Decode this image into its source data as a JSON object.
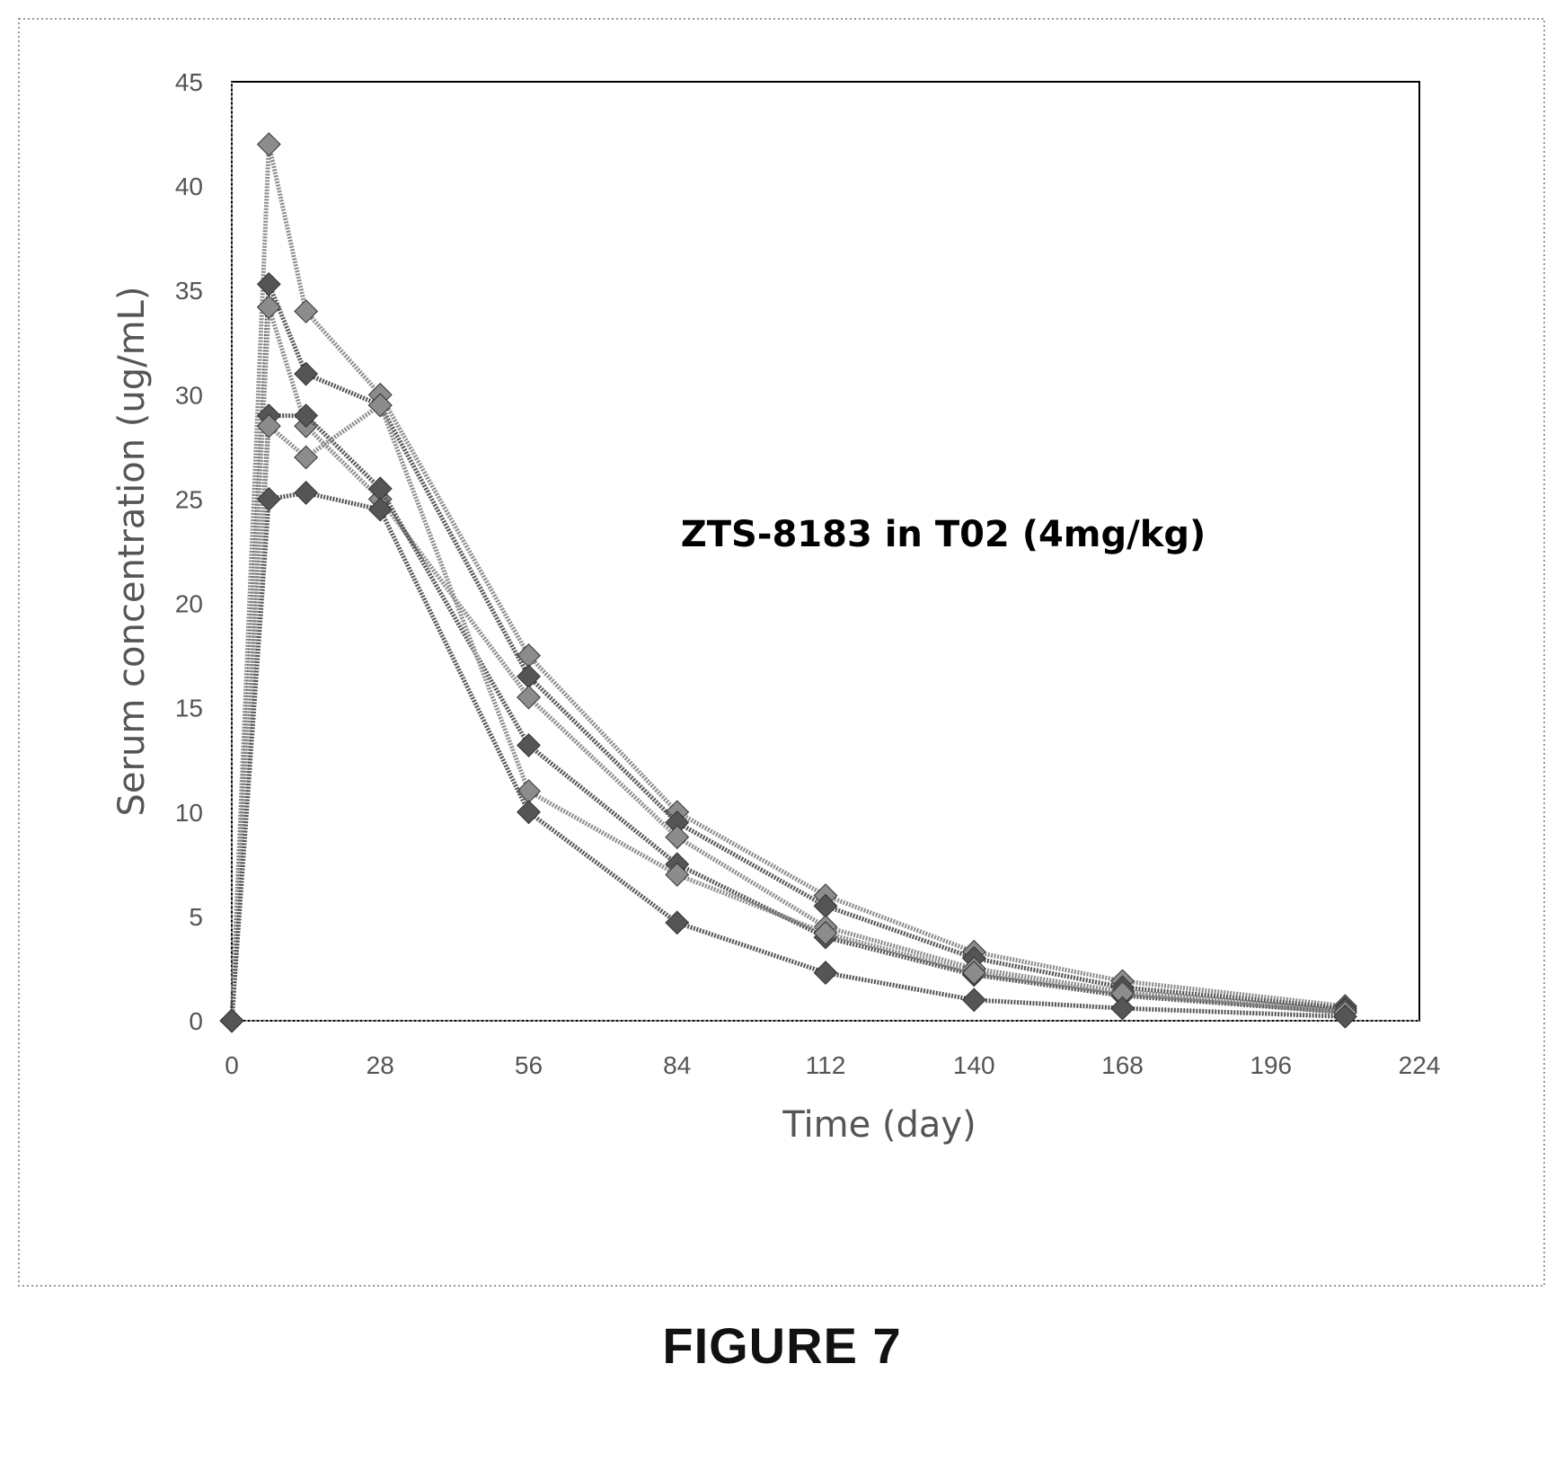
{
  "figure_caption": "FIGURE 7",
  "chart_data": {
    "type": "line",
    "title": "",
    "annotation": "ZTS-8183 in T02 (4mg/kg)",
    "xlabel": "Time (day)",
    "ylabel": "Serum concentration (ug/mL)",
    "xlim": [
      0,
      224
    ],
    "ylim": [
      0,
      45
    ],
    "xticks": [
      0,
      28,
      56,
      84,
      112,
      140,
      168,
      196,
      224
    ],
    "yticks": [
      0,
      5,
      10,
      15,
      20,
      25,
      30,
      35,
      40,
      45
    ],
    "grid": false,
    "legend": "none",
    "colors": {
      "series_dark": "#555555",
      "series_light": "#8c8c8c",
      "axis": "#000000",
      "frame": "#999999"
    },
    "series": [
      {
        "x": [
          0,
          7,
          14,
          28,
          56,
          84,
          112,
          140,
          168,
          210
        ],
        "y": [
          0,
          42,
          34,
          30,
          17.5,
          10,
          6,
          3.3,
          1.9,
          0.7
        ]
      },
      {
        "x": [
          0,
          7,
          14,
          28,
          56,
          84,
          112,
          140,
          168,
          210
        ],
        "y": [
          0,
          35.3,
          31,
          29.5,
          16.5,
          9.5,
          5.5,
          3,
          1.6,
          0.6
        ]
      },
      {
        "x": [
          0,
          7,
          14,
          28,
          56,
          84,
          112,
          140,
          168,
          210
        ],
        "y": [
          0,
          34.2,
          28.5,
          25,
          15.5,
          8.8,
          4.5,
          2.5,
          1.4,
          0.5
        ]
      },
      {
        "x": [
          0,
          7,
          14,
          28,
          56,
          84,
          112,
          140,
          168,
          210
        ],
        "y": [
          0,
          29,
          29,
          25.5,
          13.2,
          7.5,
          4,
          2.2,
          1.2,
          0.4
        ]
      },
      {
        "x": [
          0,
          7,
          14,
          28,
          56,
          84,
          112,
          140,
          168,
          210
        ],
        "y": [
          0,
          28.5,
          27,
          29.5,
          11,
          7,
          4.2,
          2.3,
          1.3,
          0.4
        ]
      },
      {
        "x": [
          0,
          7,
          14,
          28,
          56,
          84,
          112,
          140,
          168,
          210
        ],
        "y": [
          0,
          25,
          25.3,
          24.5,
          10,
          4.7,
          2.3,
          1,
          0.6,
          0.2
        ]
      }
    ]
  }
}
